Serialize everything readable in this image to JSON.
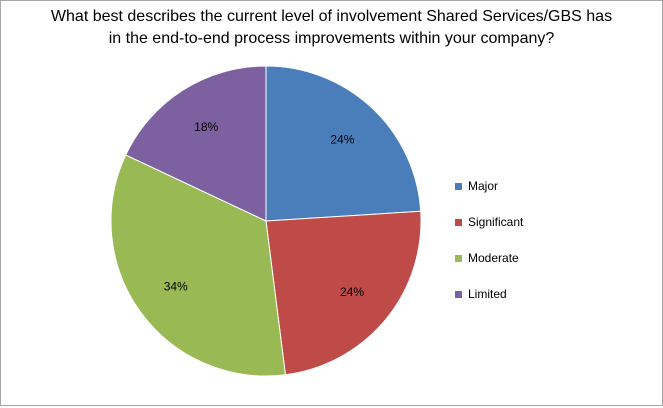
{
  "chart_data": {
    "type": "pie",
    "title_lines": [
      "What best describes the current level of involvement Shared Services/GBS has",
      "in the end-to-end process improvements within your company?"
    ],
    "categories": [
      "Major",
      "Significant",
      "Moderate",
      "Limited"
    ],
    "values": [
      24,
      24,
      34,
      18
    ],
    "labels": [
      "24%",
      "24%",
      "34%",
      "18%"
    ],
    "colors": [
      "#4a7ebb",
      "#be4b48",
      "#98b954",
      "#7d60a0"
    ],
    "legend_position": "right",
    "start_angle": "12 o'clock",
    "direction": "clockwise"
  }
}
